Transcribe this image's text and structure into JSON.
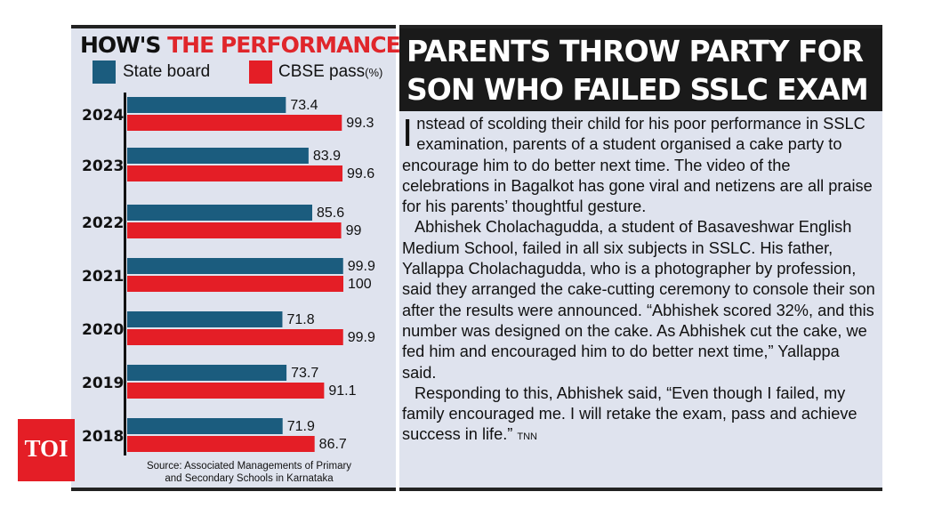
{
  "chart": {
    "title_part1": "HOW'S ",
    "title_part2": "THE PERFORMANCE",
    "legend_state": "State board",
    "legend_cbse": "CBSE pass",
    "legend_unit": "(%)",
    "source_line1": "Source: Associated Managements of Primary",
    "source_line2": "and Secondary Schools in Karnataka"
  },
  "chart_data": {
    "type": "bar",
    "orientation": "horizontal",
    "title": "HOW'S THE PERFORMANCE",
    "categories": [
      "2024",
      "2023",
      "2022",
      "2021",
      "2020",
      "2019",
      "2018"
    ],
    "series": [
      {
        "name": "State board",
        "color": "#1b5c7e",
        "values": [
          73.4,
          83.9,
          85.6,
          99.9,
          71.8,
          73.7,
          71.9
        ]
      },
      {
        "name": "CBSE pass(%)",
        "color": "#e41e26",
        "values": [
          99.3,
          99.6,
          99,
          100,
          99.9,
          91.1,
          86.7
        ]
      }
    ],
    "value_labels": {
      "state": [
        "73.4",
        "83.9",
        "85.6",
        "99.9",
        "71.8",
        "73.7",
        "71.9"
      ],
      "cbse": [
        "99.3",
        "99.6",
        "99",
        "100",
        "99.9",
        "91.1",
        "86.7"
      ]
    },
    "grid": false,
    "legend": "top"
  },
  "article": {
    "headline_line1": "PARENTS THROW PARTY FOR",
    "headline_line2": "SON WHO FAILED SSLC EXAM",
    "dropcap": "I",
    "p1": "nstead of scolding their child for his poor performance in SSLC examination, parents of a student organised a cake party to encourage him to do better next time. The video of the celebrations in Bagalkot has gone viral and netizens are all praise for his parents’ thoughtful gesture.",
    "p2": "Abhishek Cholachagudda, a student of Basaveshwar English Medium School, failed in all six subjects in SSLC. His father, Yallappa Cholachagudda, who is a photographer by profession, said they arranged the cake-cutting ceremony to console their son after the results were announced. “Abhishek scored 32%, and this number was designed on the cake. As Abhishek cut the cake, we fed him and encouraged him to do better next time,” Yallappa said.",
    "p3": "Responding to this, Abhishek said, “Even though I failed, my family encouraged me. I will retake the exam, pass and achieve success in life.”",
    "credit": "TNN"
  },
  "logo": {
    "text": "TOI"
  },
  "colors": {
    "state": "#1b5c7e",
    "cbse": "#e41e26",
    "panel": "#dfe3ee",
    "headline_bg": "#1a1a1a"
  }
}
